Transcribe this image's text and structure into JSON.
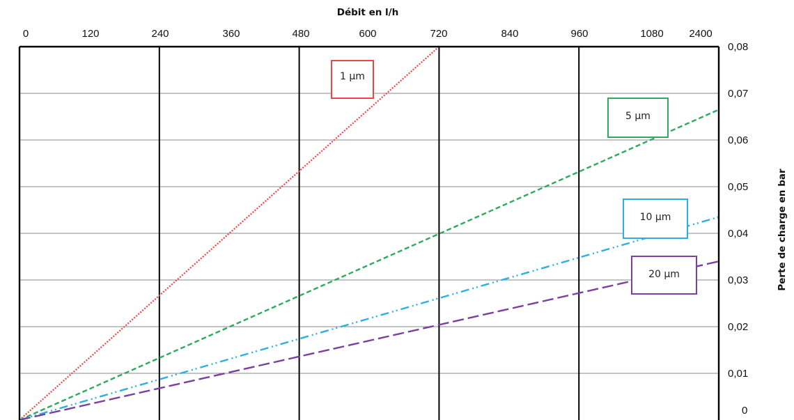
{
  "chart_data": {
    "type": "line",
    "title": "",
    "xlabel": "Débit en l/h",
    "ylabel": "Perte de charge en bar",
    "x_ticks": [
      "0",
      "120",
      "240",
      "360",
      "480",
      "600",
      "720",
      "840",
      "960",
      "1080",
      "2400"
    ],
    "y_ticks": [
      "0",
      "0,01",
      "0,02",
      "0,03",
      "0,04",
      "0,05",
      "0,06",
      "0,07",
      "0,08"
    ],
    "xlim": [
      0,
      1200
    ],
    "ylim": [
      0,
      0.08
    ],
    "grid": true,
    "series": [
      {
        "name": "1 µm",
        "color": "#ee4444",
        "x": [
          0,
          720
        ],
        "y": [
          0,
          0.08
        ]
      },
      {
        "name": "5 µm",
        "color": "#2eaa5e",
        "x": [
          0,
          1200
        ],
        "y": [
          0,
          0.0665
        ]
      },
      {
        "name": "10 µm",
        "color": "#2ab0e4",
        "x": [
          0,
          1200
        ],
        "y": [
          0,
          0.0435
        ]
      },
      {
        "name": "20 µm",
        "color": "#7a3fa0",
        "x": [
          0,
          1200
        ],
        "y": [
          0,
          0.034
        ]
      }
    ]
  }
}
